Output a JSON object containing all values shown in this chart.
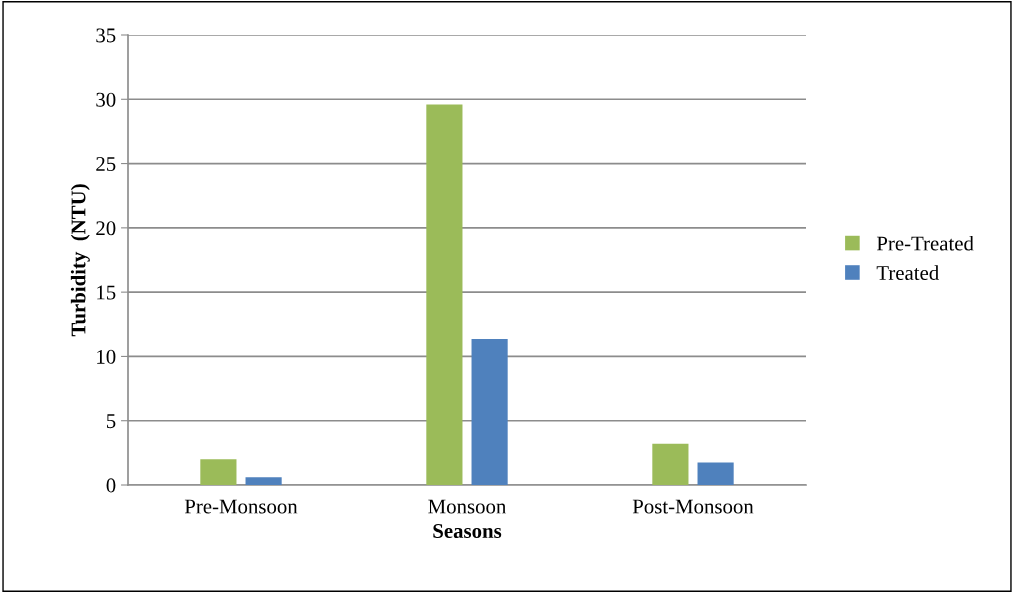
{
  "chart_data": {
    "type": "bar",
    "xlabel": "Seasons",
    "ylabel": "Turbidity  (NTU)",
    "categories": [
      "Pre-Monsoon",
      "Monsoon",
      "Post-Monsoon"
    ],
    "series": [
      {
        "name": "Pre-Treated",
        "color": "#9bbb59",
        "values": [
          2.0,
          29.6,
          3.2
        ]
      },
      {
        "name": "Treated",
        "color": "#4f81bd",
        "values": [
          0.6,
          11.35,
          1.75
        ]
      }
    ],
    "ylim": [
      0,
      35
    ],
    "yticks": [
      0,
      5,
      10,
      15,
      20,
      25,
      30,
      35
    ],
    "grid": "y",
    "legend": "right"
  }
}
